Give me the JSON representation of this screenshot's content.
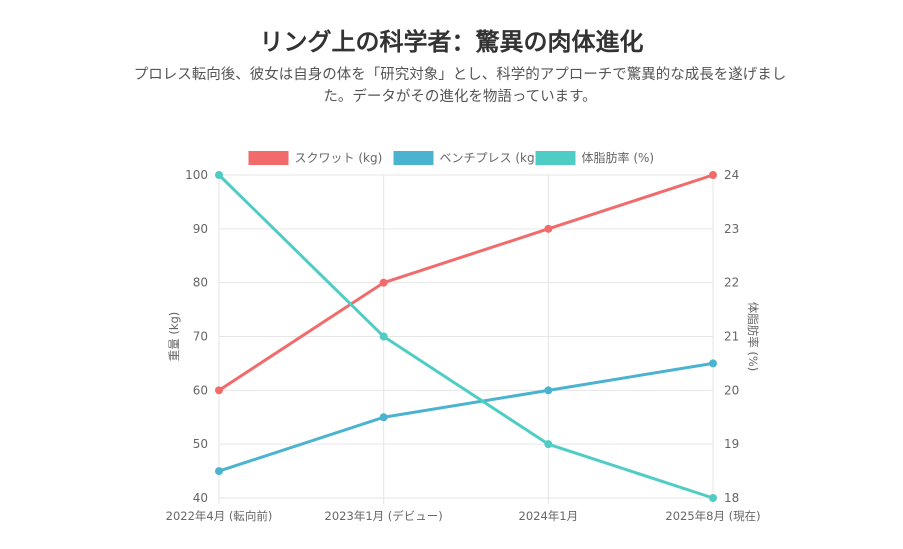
{
  "header": {
    "title": "リング上の科学者：驚異の肉体進化",
    "subtitle": "プロレス転向後、彼女は自身の体を「研究対象」とし、科学的アプローチで驚異的な成長を遂げました。データがその進化を物語っています。"
  },
  "chart_data": {
    "type": "line",
    "categories": [
      "2022年4月 (転向前)",
      "2023年1月 (デビュー)",
      "2024年1月",
      "2025年8月 (現在)"
    ],
    "series": [
      {
        "name": "スクワット (kg)",
        "axis": "left",
        "color": "#f26b6b",
        "values": [
          60,
          80,
          90,
          100
        ]
      },
      {
        "name": "ベンチプレス (kg)",
        "axis": "left",
        "color": "#4ab3cf",
        "values": [
          45,
          55,
          60,
          65
        ]
      },
      {
        "name": "体脂肪率 (%)",
        "axis": "right",
        "color": "#4fcdc4",
        "values": [
          24,
          21,
          19,
          18
        ]
      }
    ],
    "y_left": {
      "label": "重量 (kg)",
      "min": 40,
      "max": 100,
      "ticks": [
        40,
        50,
        60,
        70,
        80,
        90,
        100
      ]
    },
    "y_right": {
      "label": "体脂肪率 (%)",
      "min": 18,
      "max": 24,
      "ticks": [
        18,
        19,
        20,
        21,
        22,
        23,
        24
      ]
    },
    "legend_position": "top-center",
    "grid": true
  }
}
